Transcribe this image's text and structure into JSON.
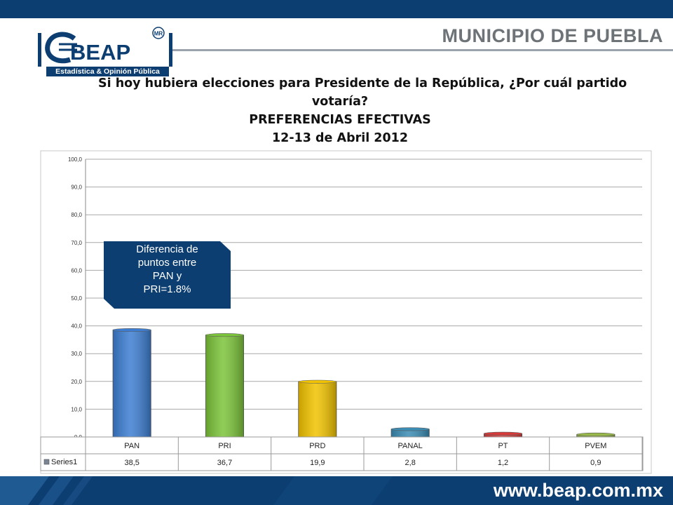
{
  "brand": {
    "logo_word": "BEAP",
    "logo_mark": "MR",
    "logo_tagline": "Estadística & Opinión Pública",
    "heading": "MUNICIPIO DE PUEBLA",
    "website": "www.beap.com.mx"
  },
  "colors": {
    "brand_navy": "#0c3e72",
    "heading_gray": "#6e7378"
  },
  "chart_data": {
    "type": "bar",
    "title_lines": [
      "Si hoy hubiera elecciones para Presidente de la República, ¿Por cuál partido",
      "votaría?",
      "PREFERENCIAS EFECTIVAS",
      "12-13 de Abril 2012"
    ],
    "categories": [
      "PAN",
      "PRI",
      "PRD",
      "PANAL",
      "PT",
      "PVEM"
    ],
    "series": [
      {
        "name": "Series1",
        "values": [
          38.5,
          36.7,
          19.9,
          2.8,
          1.2,
          0.9
        ]
      }
    ],
    "value_labels": [
      "38,5",
      "36,7",
      "19,9",
      "2,8",
      "1,2",
      "0,9"
    ],
    "bar_colors": [
      "#3d7ed2",
      "#7cc43a",
      "#f2c300",
      "#3b8db5",
      "#d83a3a",
      "#98b84a"
    ],
    "ylim": [
      0,
      100
    ],
    "yticks": [
      "0,0",
      "10,0",
      "20,0",
      "30,0",
      "40,0",
      "50,0",
      "60,0",
      "70,0",
      "80,0",
      "90,0",
      "100,0"
    ],
    "grid": true,
    "data_table": true,
    "annotation_lines": [
      "Diferencia de",
      "puntos entre",
      "PAN y",
      "PRI=1.8%"
    ]
  }
}
